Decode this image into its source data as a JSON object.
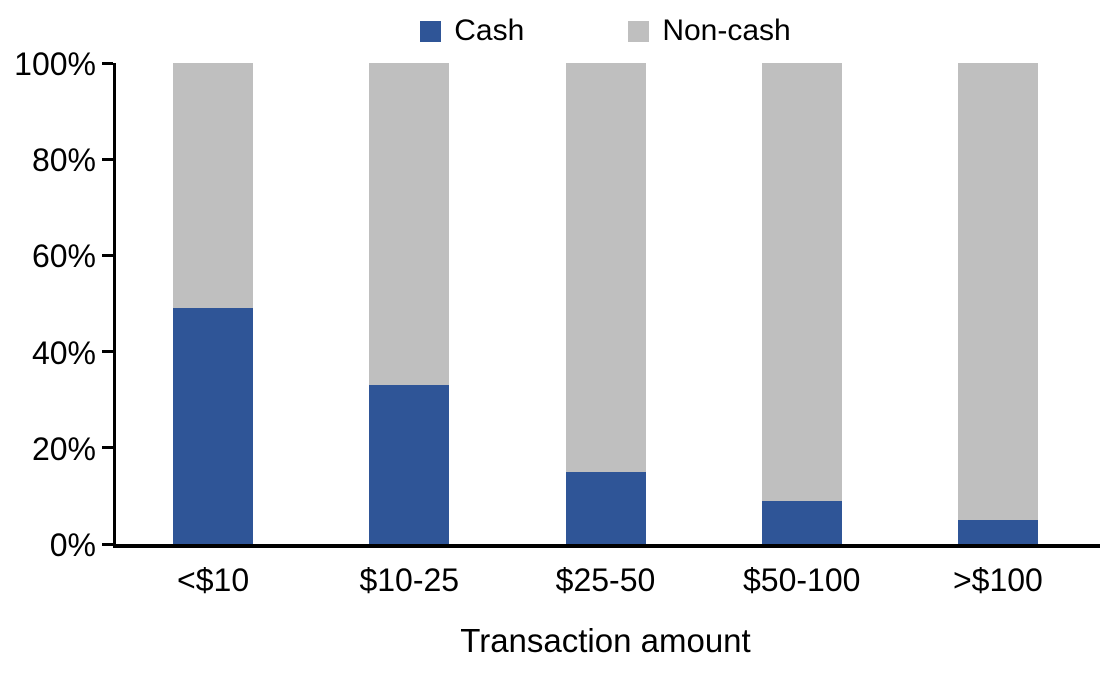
{
  "chart_data": {
    "type": "bar",
    "variant": "stacked-100-percent",
    "title": "",
    "xlabel": "Transaction amount",
    "ylabel": "",
    "categories": [
      "<$10",
      "$10-25",
      "$25-50",
      "$50-100",
      ">$100"
    ],
    "series": [
      {
        "name": "Cash",
        "color": "#2F5597",
        "values": [
          49,
          33,
          15,
          9,
          5
        ]
      },
      {
        "name": "Non-cash",
        "color": "#BFBFBF",
        "values": [
          51,
          67,
          85,
          91,
          95
        ]
      }
    ],
    "y_axis": {
      "min": 0,
      "max": 100,
      "tick_step": 20,
      "tick_labels": [
        "0%",
        "20%",
        "40%",
        "60%",
        "80%",
        "100%"
      ]
    },
    "legend_position": "top-center",
    "grid": false,
    "axis_color": "#000000",
    "text_color": "#000000",
    "background_color": "#FFFFFF"
  }
}
